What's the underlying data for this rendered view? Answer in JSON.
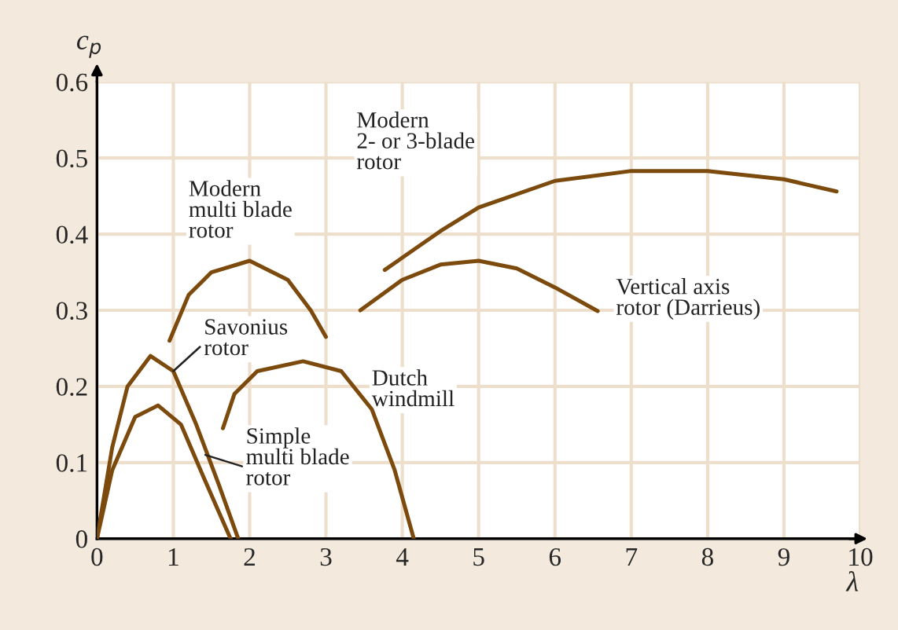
{
  "chart_data": {
    "type": "line",
    "xlabel": "λ",
    "ylabel": "c$_{p}$",
    "xlim": [
      0,
      10
    ],
    "ylim": [
      0,
      0.6
    ],
    "xticks": [
      0,
      1,
      2,
      3,
      4,
      5,
      6,
      7,
      8,
      9,
      10
    ],
    "yticks": [
      0,
      0.1,
      0.2,
      0.3,
      0.4,
      0.5,
      0.6
    ],
    "grid": true,
    "marker": "none",
    "line_style": "solid",
    "series": [
      {
        "name": "Savonius\nrotor",
        "color": "#7b4a0c",
        "x": [
          0,
          0.2,
          0.4,
          0.7,
          1.0,
          1.3,
          1.6,
          1.85
        ],
        "values": [
          0,
          0.12,
          0.2,
          0.24,
          0.22,
          0.15,
          0.07,
          0
        ]
      },
      {
        "name": "Simple\nmulti blade\nrotor",
        "color": "#7b4a0c",
        "x": [
          0,
          0.2,
          0.5,
          0.8,
          1.1,
          1.4,
          1.75
        ],
        "values": [
          0,
          0.09,
          0.16,
          0.175,
          0.15,
          0.08,
          0
        ]
      },
      {
        "name": "Modern\nmulti blade\nrotor",
        "color": "#7b4a0c",
        "x": [
          0.95,
          1.2,
          1.5,
          2.0,
          2.5,
          2.8,
          3.0
        ],
        "values": [
          0.26,
          0.32,
          0.35,
          0.365,
          0.34,
          0.3,
          0.265
        ]
      },
      {
        "name": "Dutch\nwindmill",
        "color": "#7b4a0c",
        "x": [
          1.65,
          1.8,
          2.1,
          2.7,
          3.2,
          3.6,
          3.9,
          4.15
        ],
        "values": [
          0.145,
          0.19,
          0.22,
          0.233,
          0.22,
          0.17,
          0.09,
          0
        ]
      },
      {
        "name": "Vertical axis\nrotor (Darrieus)",
        "color": "#7b4a0c",
        "x": [
          3.45,
          4.0,
          4.5,
          5.0,
          5.5,
          6.0,
          6.56
        ],
        "values": [
          0.3,
          0.34,
          0.36,
          0.365,
          0.355,
          0.33,
          0.299
        ]
      },
      {
        "name": "Modern\n2- or 3-blade\nrotor",
        "color": "#7b4a0c",
        "x": [
          3.77,
          4.5,
          5.0,
          6.0,
          7.0,
          8.0,
          9.0,
          9.69
        ],
        "values": [
          0.353,
          0.404,
          0.435,
          0.47,
          0.483,
          0.483,
          0.472,
          0.456
        ]
      }
    ]
  }
}
